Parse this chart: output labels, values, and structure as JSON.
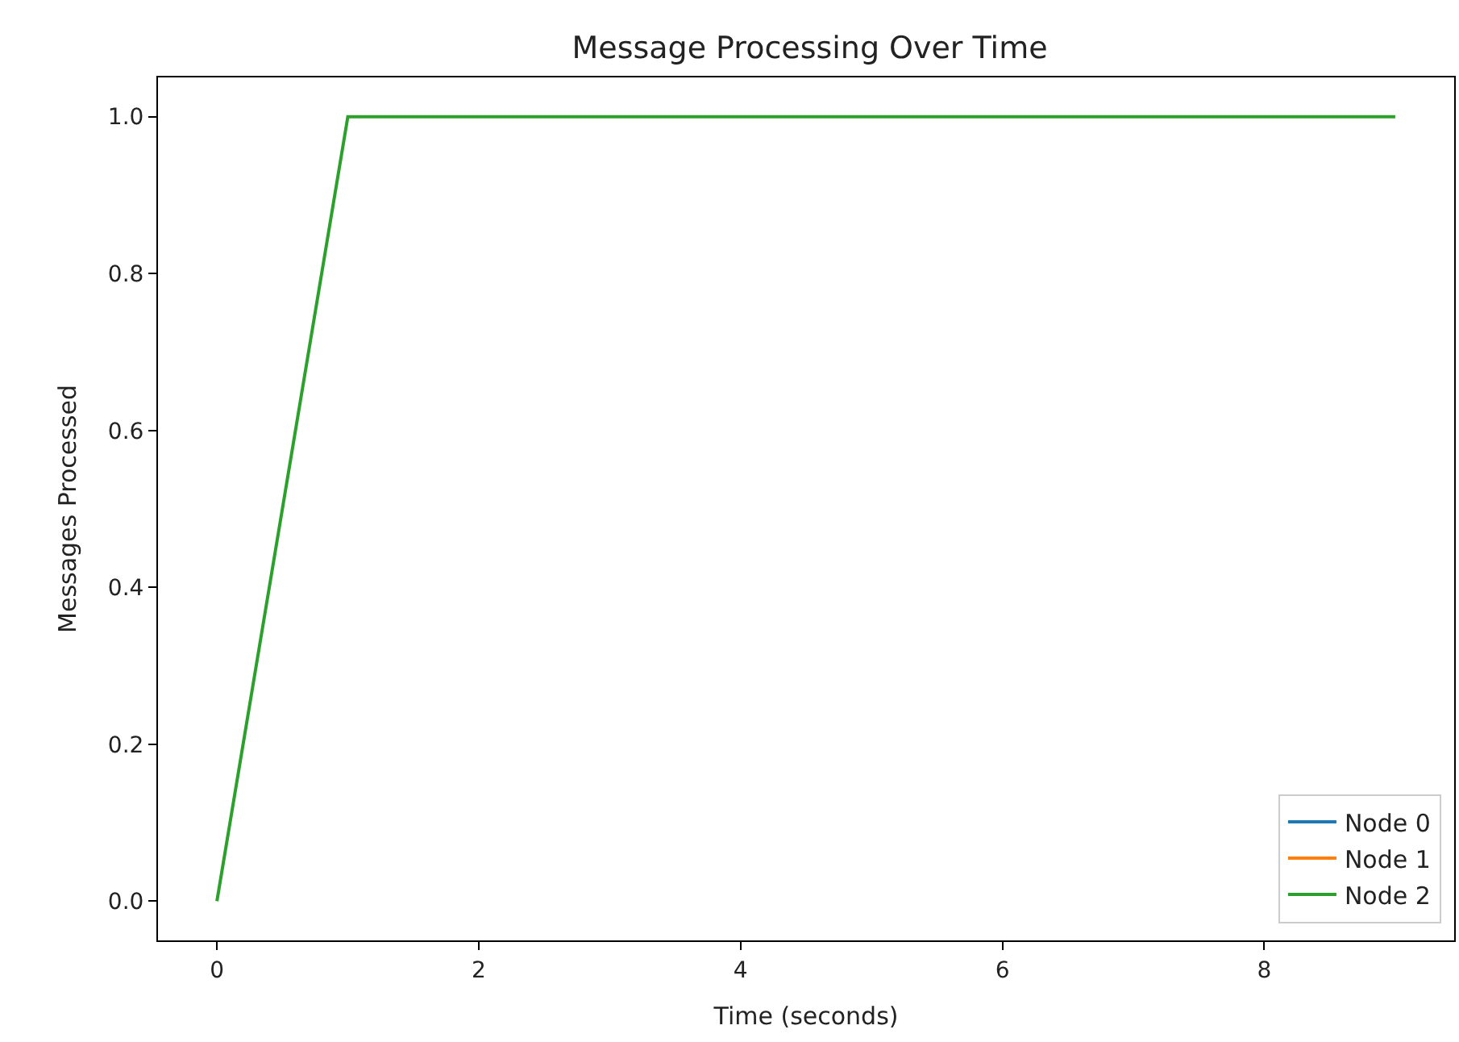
{
  "chart_data": {
    "type": "line",
    "title": "Message Processing Over Time",
    "xlabel": "Time (seconds)",
    "ylabel": "Messages Processed",
    "x": [
      0,
      1,
      2,
      3,
      4,
      5,
      6,
      7,
      8,
      9
    ],
    "series": [
      {
        "name": "Node 0",
        "color": "#1f77b4",
        "values": [
          null,
          null,
          null,
          null,
          null,
          null,
          null,
          null,
          null,
          null
        ]
      },
      {
        "name": "Node 1",
        "color": "#ff7f0e",
        "values": [
          null,
          null,
          null,
          null,
          null,
          null,
          null,
          null,
          null,
          null
        ]
      },
      {
        "name": "Node 2",
        "color": "#2ca02c",
        "values": [
          0,
          1,
          1,
          1,
          1,
          1,
          1,
          1,
          1,
          1
        ]
      }
    ],
    "xlim": [
      -0.45,
      9.45
    ],
    "xticks": [
      0,
      2,
      4,
      6,
      8
    ],
    "ylim": [
      -0.05,
      1.05
    ],
    "yticks": [
      {
        "value": 0,
        "label": "0.0"
      },
      {
        "value": 0.2,
        "label": "0.2"
      },
      {
        "value": 0.4,
        "label": "0.4"
      },
      {
        "value": 0.6,
        "label": "0.6"
      },
      {
        "value": 0.8,
        "label": "0.8"
      },
      {
        "value": 1,
        "label": "1.0"
      }
    ],
    "legend": "bottom right"
  }
}
